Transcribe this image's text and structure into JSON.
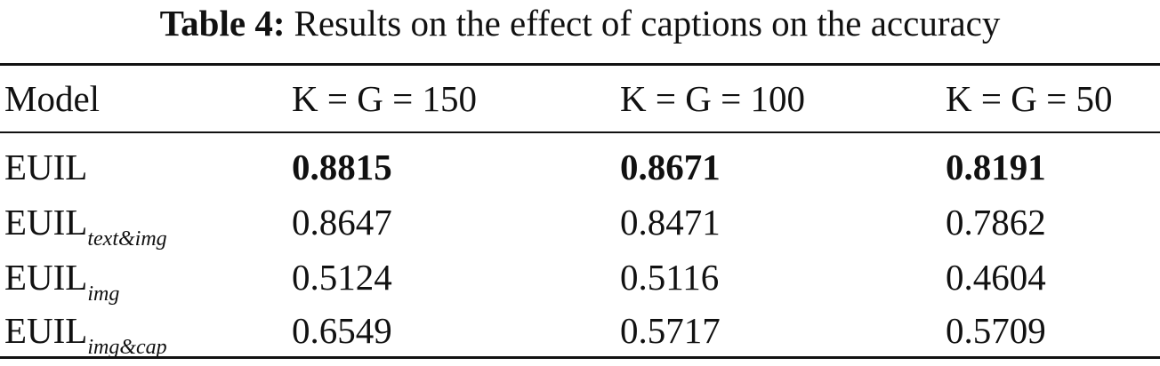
{
  "caption": {
    "label": "Table 4:",
    "text": "Results on the effect of captions on the accuracy"
  },
  "table": {
    "columns": [
      "Model",
      "K = G = 150",
      "K = G = 100",
      "K = G = 50"
    ],
    "rows": [
      {
        "model": {
          "base": "EUIL"
        },
        "values": [
          0.8815,
          0.8671,
          0.8191
        ],
        "bold": true
      },
      {
        "model": {
          "base": "EUIL",
          "sub": "text&img"
        },
        "values": [
          0.8647,
          0.8471,
          0.7862
        ],
        "bold": false
      },
      {
        "model": {
          "base": "EUIL",
          "sub": "img"
        },
        "values": [
          0.5124,
          0.5116,
          0.4604
        ],
        "bold": false
      },
      {
        "model": {
          "base": "EUIL",
          "sub": "img&cap"
        },
        "values": [
          0.6549,
          0.5717,
          0.5709
        ],
        "bold": false
      }
    ]
  }
}
